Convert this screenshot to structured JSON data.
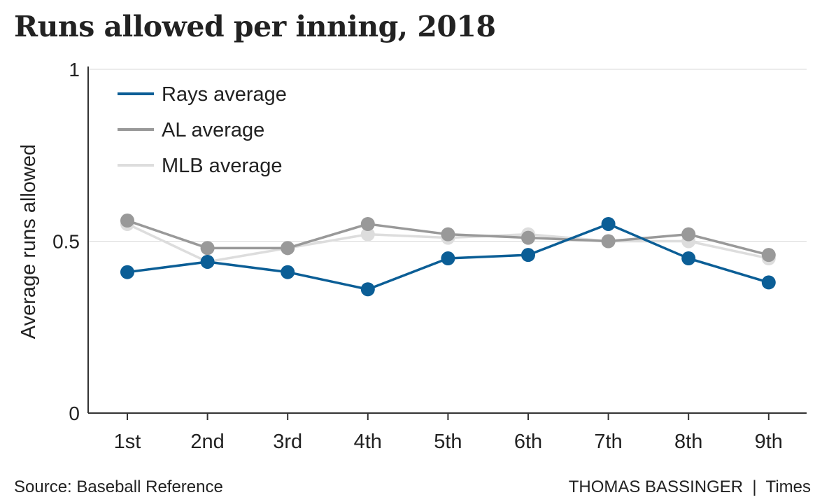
{
  "chart_data": {
    "type": "line",
    "title": "Runs allowed per inning, 2018",
    "xlabel": "",
    "ylabel": "Average runs allowed",
    "categories": [
      "1st",
      "2nd",
      "3rd",
      "4th",
      "5th",
      "6th",
      "7th",
      "8th",
      "9th"
    ],
    "ylim": [
      0,
      1
    ],
    "yticks": [
      0,
      0.5,
      1
    ],
    "ytick_labels": [
      "0",
      "0.5",
      "1"
    ],
    "grid": true,
    "legend_position": "top-left",
    "series": [
      {
        "name": "MLB average",
        "color": "#dddddd",
        "values": [
          0.55,
          0.44,
          0.48,
          0.52,
          0.51,
          0.52,
          0.5,
          0.5,
          0.45
        ]
      },
      {
        "name": "AL average",
        "color": "#999999",
        "values": [
          0.56,
          0.48,
          0.48,
          0.55,
          0.52,
          0.51,
          0.5,
          0.52,
          0.46
        ]
      },
      {
        "name": "Rays average",
        "color": "#0b5e96",
        "values": [
          0.41,
          0.44,
          0.41,
          0.36,
          0.45,
          0.46,
          0.55,
          0.45,
          0.38
        ]
      }
    ],
    "legend_order": [
      "Rays average",
      "AL average",
      "MLB average"
    ]
  },
  "footer": {
    "source": "Source: Baseball Reference",
    "credit": "THOMAS BASSINGER  |  Times"
  }
}
